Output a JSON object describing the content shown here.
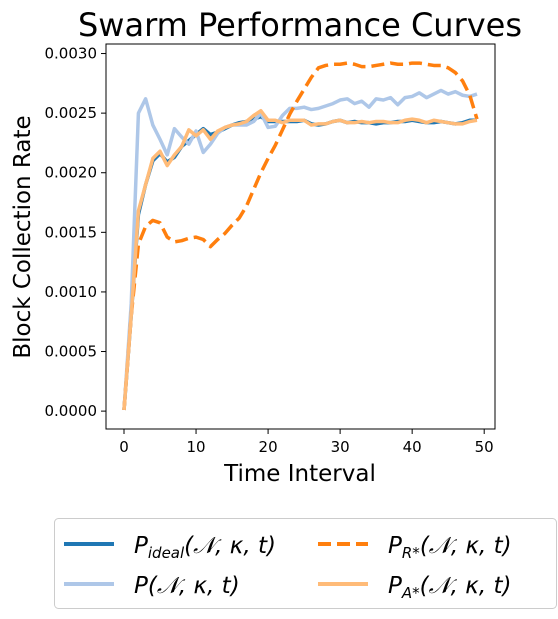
{
  "chart_data": {
    "type": "line",
    "title": "Swarm Performance Curves",
    "xlabel": "Time Interval",
    "ylabel": "Block Collection Rate",
    "xlim": [
      -2.5,
      51.5
    ],
    "ylim": [
      -0.00015,
      0.00308
    ],
    "xticks": [
      0,
      10,
      20,
      30,
      40,
      50
    ],
    "yticks": [
      0,
      0.0005,
      0.001,
      0.0015,
      0.002,
      0.0025,
      0.003
    ],
    "xtick_labels": [
      "0",
      "10",
      "20",
      "30",
      "40",
      "50"
    ],
    "ytick_labels": [
      "0.0000",
      "0.0005",
      "0.0010",
      "0.0015",
      "0.0020",
      "0.0025",
      "0.0030"
    ],
    "grid": false,
    "legend_position": "bottom, outside plot",
    "x": [
      0,
      1,
      2,
      3,
      4,
      5,
      6,
      7,
      8,
      9,
      10,
      11,
      12,
      13,
      14,
      15,
      16,
      17,
      18,
      19,
      20,
      21,
      22,
      23,
      24,
      25,
      26,
      27,
      28,
      29,
      30,
      31,
      32,
      33,
      34,
      35,
      36,
      37,
      38,
      39,
      40,
      41,
      42,
      43,
      44,
      45,
      46,
      47,
      48,
      49
    ],
    "series": [
      {
        "name": "P_ideal(N, κ, t)",
        "color": "#1f77b4",
        "dash": "solid",
        "values": [
          1e-05,
          0.0008,
          0.00165,
          0.0019,
          0.0021,
          0.00216,
          0.00209,
          0.00213,
          0.00222,
          0.00227,
          0.00232,
          0.00237,
          0.00232,
          0.00234,
          0.00237,
          0.0024,
          0.00242,
          0.00243,
          0.00245,
          0.00247,
          0.00243,
          0.00243,
          0.00243,
          0.00243,
          0.00243,
          0.00244,
          0.00241,
          0.0024,
          0.00241,
          0.00243,
          0.00244,
          0.00242,
          0.00243,
          0.00242,
          0.00242,
          0.00241,
          0.00242,
          0.00242,
          0.00243,
          0.00243,
          0.00244,
          0.00243,
          0.00242,
          0.00242,
          0.00243,
          0.00242,
          0.00241,
          0.00242,
          0.00244,
          0.00244
        ]
      },
      {
        "name": "P(N, κ, t)",
        "color": "#aec7e8",
        "dash": "solid",
        "values": [
          1e-05,
          0.0009,
          0.0025,
          0.00262,
          0.0024,
          0.00228,
          0.00215,
          0.00237,
          0.0023,
          0.00224,
          0.00235,
          0.00217,
          0.00224,
          0.00233,
          0.00238,
          0.0024,
          0.0024,
          0.0024,
          0.00243,
          0.0025,
          0.00238,
          0.00239,
          0.00248,
          0.00254,
          0.00254,
          0.00255,
          0.00253,
          0.00254,
          0.00256,
          0.00258,
          0.00261,
          0.00262,
          0.00258,
          0.0026,
          0.00255,
          0.00262,
          0.00261,
          0.00263,
          0.00257,
          0.00263,
          0.00264,
          0.00267,
          0.00263,
          0.00266,
          0.00269,
          0.00266,
          0.00268,
          0.00265,
          0.00264,
          0.00266
        ]
      },
      {
        "name": "P_R*(N, κ, t)",
        "color": "#ff7f0e",
        "dash": "dashed",
        "values": [
          1e-05,
          0.0008,
          0.0014,
          0.00155,
          0.0016,
          0.00158,
          0.00146,
          0.00142,
          0.00143,
          0.00145,
          0.00146,
          0.00144,
          0.00138,
          0.00144,
          0.00149,
          0.00156,
          0.00162,
          0.00172,
          0.00186,
          0.002,
          0.00212,
          0.00223,
          0.00236,
          0.00249,
          0.0026,
          0.0027,
          0.0028,
          0.00288,
          0.0029,
          0.00291,
          0.00291,
          0.00292,
          0.00291,
          0.00289,
          0.00289,
          0.0029,
          0.00291,
          0.00292,
          0.00291,
          0.00291,
          0.00292,
          0.00292,
          0.00291,
          0.0029,
          0.0029,
          0.00288,
          0.00284,
          0.00277,
          0.00265,
          0.00245
        ]
      },
      {
        "name": "P_A*(N, κ, t)",
        "color": "#ffbb78",
        "dash": "solid",
        "values": [
          1e-05,
          0.0008,
          0.00168,
          0.0019,
          0.00212,
          0.00218,
          0.00206,
          0.00215,
          0.00222,
          0.00236,
          0.00231,
          0.00236,
          0.00228,
          0.00235,
          0.00238,
          0.0024,
          0.00241,
          0.00243,
          0.00248,
          0.00252,
          0.00244,
          0.00244,
          0.00242,
          0.00244,
          0.00244,
          0.00244,
          0.0024,
          0.00241,
          0.00241,
          0.00243,
          0.00244,
          0.00242,
          0.00242,
          0.00243,
          0.00242,
          0.00243,
          0.00243,
          0.00242,
          0.00242,
          0.00244,
          0.00245,
          0.00244,
          0.00242,
          0.00244,
          0.00243,
          0.00242,
          0.00241,
          0.00241,
          0.00243,
          0.00244
        ]
      }
    ]
  },
  "legend": {
    "entries": [
      {
        "key": "ideal",
        "base": "P",
        "sub": "ideal",
        "args": "(𝒩, κ, t)",
        "color": "#1f77b4",
        "dash": "solid"
      },
      {
        "key": "rstar",
        "base": "P",
        "sub": "R*",
        "args": "(𝒩, κ, t)",
        "color": "#ff7f0e",
        "dash": "dashed"
      },
      {
        "key": "plain",
        "base": "P",
        "sub": "",
        "args": "(𝒩, κ, t)",
        "color": "#aec7e8",
        "dash": "solid"
      },
      {
        "key": "astar",
        "base": "P",
        "sub": "A*",
        "args": "(𝒩, κ, t)",
        "color": "#ffbb78",
        "dash": "solid"
      }
    ]
  }
}
